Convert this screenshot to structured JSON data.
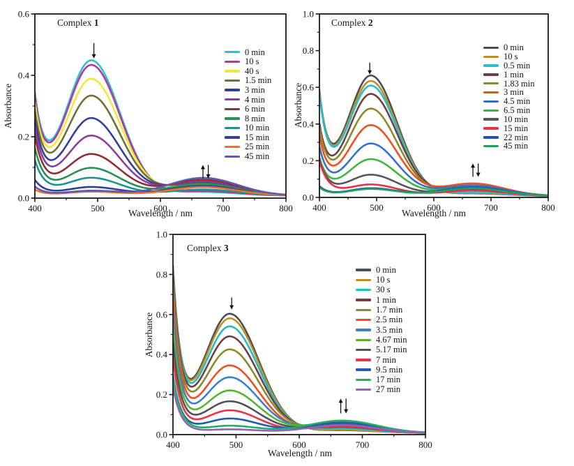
{
  "figure": {
    "background": "#ffffff",
    "frame_color": "#1a1a1a"
  },
  "chart_data": [
    {
      "type": "line",
      "title_prefix": "Complex",
      "title_number": "1",
      "xlabel": "Wavelength / nm",
      "ylabel": "Absorbance",
      "xlim": [
        400,
        800
      ],
      "ylim": [
        0,
        0.6
      ],
      "x_ticks": [
        400,
        500,
        600,
        700,
        800
      ],
      "x_minor_ticks": [
        450,
        550,
        650,
        750
      ],
      "y_ticks": [
        "0.0",
        "0.2",
        "0.4",
        "0.6"
      ],
      "y_tick_values": [
        0,
        0.2,
        0.4,
        0.6
      ],
      "y_minor_ticks": [
        0.1,
        0.3,
        0.5
      ],
      "grid": "off",
      "legend_position": "inside-right",
      "peak_center_nm": 490,
      "band2_center_nm": 668,
      "series": [
        {
          "label": "0 min",
          "color": "#2bc0d4",
          "a488": 0.44,
          "a400": 0.35,
          "a668": 0.012
        },
        {
          "label": "10 s",
          "color": "#b43a98",
          "a488": 0.425,
          "a400": 0.335,
          "a668": 0.015
        },
        {
          "label": "40 s",
          "color": "#f0e83a",
          "a488": 0.38,
          "a400": 0.315,
          "a668": 0.032
        },
        {
          "label": "1.5 min",
          "color": "#6f7031",
          "a488": 0.325,
          "a400": 0.29,
          "a668": 0.042
        },
        {
          "label": "3 min",
          "color": "#33409b",
          "a488": 0.252,
          "a400": 0.262,
          "a668": 0.046
        },
        {
          "label": "4 min",
          "color": "#8a3f9e",
          "a488": 0.195,
          "a400": 0.235,
          "a668": 0.048
        },
        {
          "label": "6 min",
          "color": "#8e2f33",
          "a488": 0.135,
          "a400": 0.205,
          "a668": 0.052
        },
        {
          "label": "8 min",
          "color": "#2a9150",
          "a488": 0.09,
          "a400": 0.165,
          "a668": 0.038
        },
        {
          "label": "10 min",
          "color": "#1b9390",
          "a488": 0.058,
          "a400": 0.125,
          "a668": 0.02
        },
        {
          "label": "15 min",
          "color": "#2f4099",
          "a488": 0.028,
          "a400": 0.06,
          "a668": 0.032
        },
        {
          "label": "25 min",
          "color": "#f26f2a",
          "a488": 0.013,
          "a400": 0.028,
          "a668": 0.028
        },
        {
          "label": "45 min",
          "color": "#5c5ab2",
          "a488": 0.016,
          "a400": 0.038,
          "a668": 0.058
        }
      ],
      "annotations": [
        {
          "kind": "down",
          "symbol": "↓",
          "x_nm": 494,
          "y_top": 0.505,
          "y_bot": 0.455
        },
        {
          "kind": "updown",
          "symbol": "↑↓",
          "x_nm": 672,
          "y_top": 0.108,
          "y_bot": 0.064
        }
      ]
    },
    {
      "type": "line",
      "title_prefix": "Complex",
      "title_number": "2",
      "xlabel": "Wavelength / nm",
      "ylabel": "Absorbance",
      "xlim": [
        400,
        800
      ],
      "ylim": [
        0,
        1.0
      ],
      "x_ticks": [
        400,
        500,
        600,
        700,
        800
      ],
      "x_minor_ticks": [
        450,
        550,
        650,
        750
      ],
      "y_ticks": [
        "0.0",
        "0.2",
        "0.4",
        "0.6",
        "0.8",
        "1.0"
      ],
      "y_tick_values": [
        0,
        0.2,
        0.4,
        0.6,
        0.8,
        1.0
      ],
      "y_minor_ticks": [
        0.1,
        0.3,
        0.5,
        0.7,
        0.9
      ],
      "grid": "off",
      "legend_position": "inside-right",
      "peak_center_nm": 490,
      "band2_center_nm": 668,
      "series": [
        {
          "label": "0 min",
          "color": "#4b4e54",
          "a488": 0.655,
          "a400": 0.59,
          "a668": 0.014
        },
        {
          "label": "10 s",
          "color": "#c18f26",
          "a488": 0.625,
          "a400": 0.58,
          "a668": 0.016
        },
        {
          "label": "0.5 min",
          "color": "#25bfcf",
          "a488": 0.6,
          "a400": 0.572,
          "a668": 0.02
        },
        {
          "label": "1 min",
          "color": "#6e4045",
          "a488": 0.555,
          "a400": 0.41,
          "a668": 0.04
        },
        {
          "label": "1.83 min",
          "color": "#8a8a28",
          "a488": 0.475,
          "a400": 0.39,
          "a668": 0.045
        },
        {
          "label": "3 min",
          "color": "#f14e22",
          "a488": 0.385,
          "a400": 0.34,
          "a668": 0.068
        },
        {
          "label": "4.5 min",
          "color": "#3173c6",
          "a488": 0.285,
          "a400": 0.28,
          "a668": 0.058
        },
        {
          "label": "6.5 min",
          "color": "#41b43c",
          "a488": 0.2,
          "a400": 0.22,
          "a668": 0.048
        },
        {
          "label": "10 min",
          "color": "#54575b",
          "a488": 0.115,
          "a400": 0.21,
          "a668": 0.038
        },
        {
          "label": "15 min",
          "color": "#e93044",
          "a488": 0.062,
          "a400": 0.2,
          "a668": 0.03
        },
        {
          "label": "22 min",
          "color": "#2055b8",
          "a488": 0.042,
          "a400": 0.062,
          "a668": 0.048
        },
        {
          "label": "45 min",
          "color": "#21a060",
          "a488": 0.038,
          "a400": 0.055,
          "a668": 0.042
        }
      ],
      "annotations": [
        {
          "kind": "down",
          "symbol": "↓",
          "x_nm": 488,
          "y_top": 0.735,
          "y_bot": 0.67
        },
        {
          "kind": "updown",
          "symbol": "↑↓",
          "x_nm": 673,
          "y_top": 0.185,
          "y_bot": 0.112
        }
      ]
    },
    {
      "type": "line",
      "title_prefix": "Complex",
      "title_number": "3",
      "xlabel": "Wavelength / nm",
      "ylabel": "Absorbance",
      "xlim": [
        400,
        800
      ],
      "ylim": [
        0,
        1.0
      ],
      "x_ticks": [
        400,
        500,
        600,
        700,
        800
      ],
      "x_minor_ticks": [
        450,
        550,
        650,
        750
      ],
      "y_ticks": [
        "0.0",
        "0.2",
        "0.4",
        "0.6",
        "0.8",
        "1.0"
      ],
      "y_tick_values": [
        0,
        0.2,
        0.4,
        0.6,
        0.8,
        1.0
      ],
      "y_minor_ticks": [
        0.1,
        0.3,
        0.5,
        0.7,
        0.9
      ],
      "grid": "off",
      "legend_position": "inside-right",
      "peak_center_nm": 490,
      "band2_center_nm": 668,
      "series": [
        {
          "label": "0 min",
          "color": "#4b4e54",
          "a488": 0.595,
          "a400": 0.85,
          "a668": 0.014
        },
        {
          "label": "10 s",
          "color": "#c18f26",
          "a488": 0.572,
          "a400": 0.84,
          "a668": 0.016
        },
        {
          "label": "30 s",
          "color": "#22bcc8",
          "a488": 0.532,
          "a400": 0.83,
          "a668": 0.022
        },
        {
          "label": "1 min",
          "color": "#6e4045",
          "a488": 0.482,
          "a400": 0.8,
          "a668": 0.03
        },
        {
          "label": "1.7 min",
          "color": "#8a8a28",
          "a488": 0.417,
          "a400": 0.76,
          "a668": 0.04
        },
        {
          "label": "2.5 min",
          "color": "#f14e22",
          "a488": 0.337,
          "a400": 0.7,
          "a668": 0.034
        },
        {
          "label": "3.5 min",
          "color": "#3a80d2",
          "a488": 0.278,
          "a400": 0.62,
          "a668": 0.05
        },
        {
          "label": "4.67 min",
          "color": "#57b42c",
          "a488": 0.212,
          "a400": 0.545,
          "a668": 0.056
        },
        {
          "label": "5.17 min",
          "color": "#4f5256",
          "a488": 0.158,
          "a400": 0.465,
          "a668": 0.045
        },
        {
          "label": "7 min",
          "color": "#ee3248",
          "a488": 0.113,
          "a400": 0.385,
          "a668": 0.034
        },
        {
          "label": "9.5 min",
          "color": "#2459b4",
          "a488": 0.072,
          "a400": 0.3,
          "a668": 0.052
        },
        {
          "label": "17 min",
          "color": "#20af63",
          "a488": 0.036,
          "a400": 0.295,
          "a668": 0.062
        },
        {
          "label": "27 min",
          "color": "#8f63b8",
          "a488": 0.018,
          "a400": 0.24,
          "a668": 0.04
        }
      ],
      "annotations": [
        {
          "kind": "down",
          "symbol": "↓",
          "x_nm": 493,
          "y_top": 0.685,
          "y_bot": 0.625
        },
        {
          "kind": "updown",
          "symbol": "↑↓",
          "x_nm": 670,
          "y_top": 0.18,
          "y_bot": 0.106
        }
      ]
    }
  ]
}
